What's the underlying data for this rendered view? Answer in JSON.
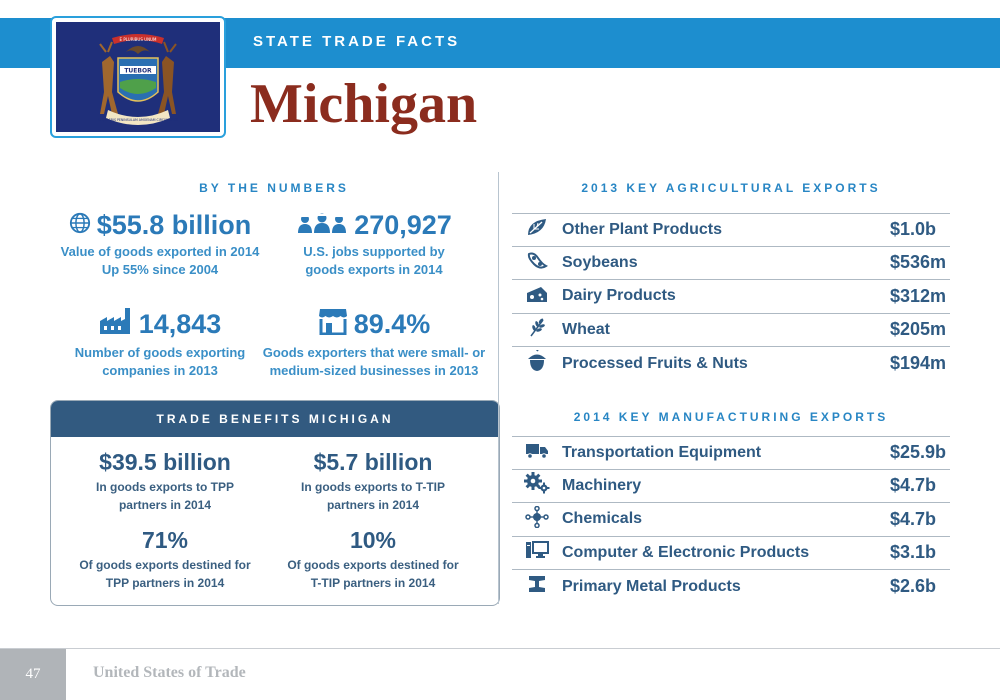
{
  "header": {
    "subtitle": "STATE TRADE FACTS",
    "state": "Michigan",
    "flag_text": {
      "top_ribbon": "E PLURIBUS UNUM",
      "shield": "TUEBOR",
      "bottom_scroll": "SI QUAERIS PENINSULAM AMOENAM CIRCUMSPICE"
    },
    "colors": {
      "band": "#1d8ecf",
      "title": "#8b2c1e",
      "flag_bg": "#1f2f7a"
    }
  },
  "by_the_numbers": {
    "heading": "BY THE NUMBERS",
    "stats": [
      {
        "icon": "globe-icon",
        "value": "$55.8 billion",
        "line1": "Value of goods exported in 2014",
        "line2": "Up 55% since 2004"
      },
      {
        "icon": "workers-icon",
        "value": "270,927",
        "line1": "U.S. jobs supported by",
        "line2": "goods exports in 2014"
      },
      {
        "icon": "factory-icon",
        "value": "14,843",
        "line1": "Number of goods exporting",
        "line2": "companies in 2013"
      },
      {
        "icon": "storefront-icon",
        "value": "89.4%",
        "line1": "Goods exporters that were small- or",
        "line2": "medium-sized businesses in 2013"
      }
    ]
  },
  "trade_benefits": {
    "heading": "TRADE BENEFITS MICHIGAN",
    "stats": [
      {
        "value": "$39.5 billion",
        "line1": "In goods exports to TPP",
        "line2": "partners in 2014"
      },
      {
        "value": "$5.7 billion",
        "line1": "In goods exports to T-TIP",
        "line2": "partners in 2014"
      },
      {
        "value": "71%",
        "line1": "Of goods exports destined for",
        "line2": "TPP partners in 2014"
      },
      {
        "value": "10%",
        "line1": "Of goods exports destined for",
        "line2": "T-TIP partners in 2014"
      }
    ]
  },
  "agricultural": {
    "heading": "2013 KEY AGRICULTURAL EXPORTS",
    "items": [
      {
        "icon": "leaf-icon",
        "name": "Other Plant Products",
        "value": "$1.0b"
      },
      {
        "icon": "soybean-icon",
        "name": "Soybeans",
        "value": "$536m"
      },
      {
        "icon": "cheese-icon",
        "name": "Dairy Products",
        "value": "$312m"
      },
      {
        "icon": "wheat-icon",
        "name": "Wheat",
        "value": "$205m"
      },
      {
        "icon": "nut-icon",
        "name": "Processed Fruits & Nuts",
        "value": "$194m"
      }
    ]
  },
  "manufacturing": {
    "heading": "2014 KEY MANUFACTURING EXPORTS",
    "items": [
      {
        "icon": "truck-icon",
        "name": "Transportation Equipment",
        "value": "$25.9b"
      },
      {
        "icon": "gears-icon",
        "name": "Machinery",
        "value": "$4.7b"
      },
      {
        "icon": "molecule-icon",
        "name": "Chemicals",
        "value": "$4.7b"
      },
      {
        "icon": "computer-icon",
        "name": "Computer & Electronic Products",
        "value": "$3.1b"
      },
      {
        "icon": "i-beam-icon",
        "name": "Primary Metal Products",
        "value": "$2.6b"
      }
    ]
  },
  "footer": {
    "page": "47",
    "title": "United States of Trade"
  }
}
